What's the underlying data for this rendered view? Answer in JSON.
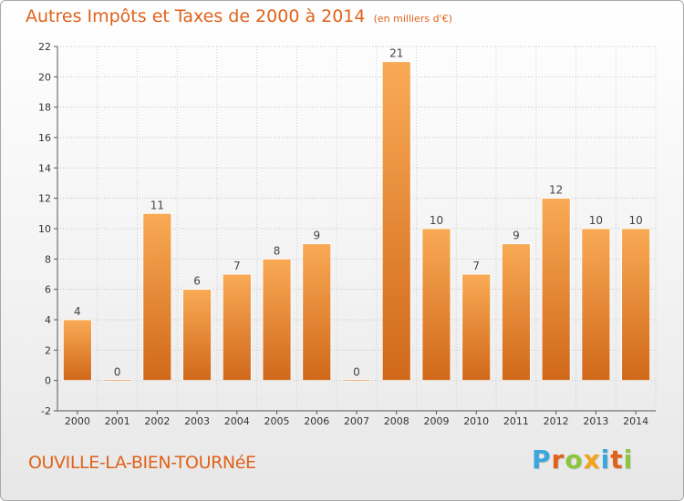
{
  "title": {
    "main": "Autres Impôts et Taxes de 2000 à 2014",
    "unit": "(en milliers d'€)"
  },
  "commune": "OUVILLE-LA-BIEN-TOURNéE",
  "logo": {
    "letters": [
      {
        "ch": "P",
        "color": "#3aa6dc"
      },
      {
        "ch": "r",
        "color": "#e0621a"
      },
      {
        "ch": "o",
        "color": "#8cc63f"
      },
      {
        "ch": "x",
        "color": "#f3a21b"
      },
      {
        "ch": "i",
        "color": "#3aa6dc"
      },
      {
        "ch": "t",
        "color": "#e0621a"
      },
      {
        "ch": "i",
        "color": "#8cc63f"
      }
    ]
  },
  "chart_data": {
    "type": "bar",
    "categories": [
      "2000",
      "2001",
      "2002",
      "2003",
      "2004",
      "2005",
      "2006",
      "2007",
      "2008",
      "2009",
      "2010",
      "2011",
      "2012",
      "2013",
      "2014"
    ],
    "values": [
      4,
      0,
      11,
      6,
      7,
      8,
      9,
      0,
      21,
      10,
      7,
      9,
      12,
      10,
      10
    ],
    "data_labels": [
      "4",
      "0",
      "11",
      "6",
      "7",
      "8",
      "9",
      "0",
      "21",
      "10",
      "7",
      "9",
      "12",
      "10",
      "10"
    ],
    "ylim": [
      -2,
      22
    ],
    "yticks": [
      -2,
      0,
      2,
      4,
      6,
      8,
      10,
      12,
      14,
      16,
      18,
      20,
      22
    ],
    "grid": "horizontal dotted",
    "bar_color": "#f5a04a",
    "bar_color_dark": "#d2701e"
  }
}
